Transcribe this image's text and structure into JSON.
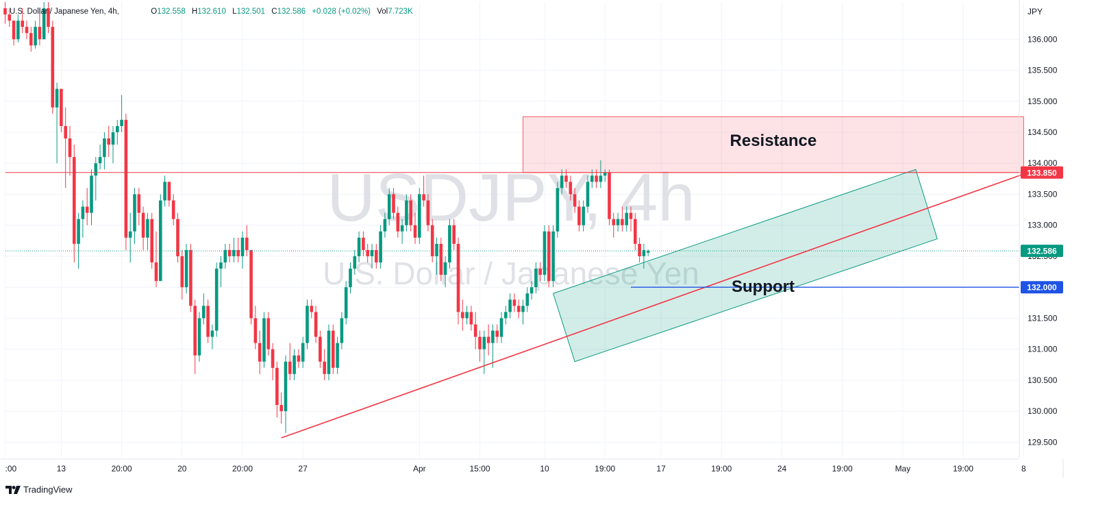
{
  "legend": {
    "symbol": "U.S. Dollar / Japanese Yen, 4h,",
    "o_label": "O",
    "o_value": "132.558",
    "h_label": "H",
    "h_value": "132.610",
    "l_label": "L",
    "l_value": "132.501",
    "c_label": "C",
    "c_value": "132.586",
    "change": "+0.028 (+0.02%)",
    "vol_label": "Vol",
    "vol_value": "7.723K"
  },
  "watermark": {
    "line1": "USDJPY, 4h",
    "line2": "U.S. Dollar / Japanese Yen"
  },
  "brand": "TradingView",
  "chart_data": {
    "type": "candlestick",
    "currency_label": "JPY",
    "ylim": [
      129.25,
      136.6
    ],
    "y_ticks": [
      "136.000",
      "135.500",
      "135.000",
      "134.500",
      "134.000",
      "133.500",
      "133.000",
      "132.500",
      "132.000",
      "131.500",
      "131.000",
      "130.500",
      "130.000",
      "129.500"
    ],
    "x_ticks": [
      {
        "label": ":00",
        "i": 0
      },
      {
        "label": "13",
        "i": 13
      },
      {
        "label": "20:00",
        "i": 27
      },
      {
        "label": "20",
        "i": 41
      },
      {
        "label": "20:00",
        "i": 55
      },
      {
        "label": "27",
        "i": 69
      },
      {
        "label": "Apr",
        "i": 96
      },
      {
        "label": "15:00",
        "i": 110
      },
      {
        "label": "10",
        "i": 125
      },
      {
        "label": "19:00",
        "i": 139
      },
      {
        "label": "17",
        "i": 152
      },
      {
        "label": "19:00",
        "i": 166
      },
      {
        "label": "24",
        "i": 180
      },
      {
        "label": "19:00",
        "i": 194
      },
      {
        "label": "May",
        "i": 208
      },
      {
        "label": "19:00",
        "i": 222
      },
      {
        "label": "8",
        "i": 236
      }
    ],
    "price_labels": [
      {
        "text": "133.850",
        "value": 133.85,
        "color": "#f23645"
      },
      {
        "text": "132.586",
        "value": 132.586,
        "color": "#089981"
      },
      {
        "text": "132.000",
        "value": 132.0,
        "color": "#1e53e5"
      }
    ],
    "annotations": [
      {
        "type": "rect",
        "label": "Resistance",
        "i1": 120,
        "i2": 236,
        "y1": 133.85,
        "y2": 134.75,
        "color": "#f23645"
      },
      {
        "type": "channel",
        "label": "",
        "points": [
          [
            127,
            131.9
          ],
          [
            211,
            133.9
          ],
          [
            216,
            132.78
          ],
          [
            132,
            130.8
          ]
        ],
        "color": "#089981"
      },
      {
        "type": "trendline",
        "label": "",
        "i1": 64,
        "y1": 129.57,
        "i2": 237,
        "y2": 133.85,
        "color": "#f23645"
      },
      {
        "type": "hline",
        "label": "",
        "value": 133.85,
        "color": "#f23645"
      },
      {
        "type": "hray",
        "label": "Support",
        "i1": 145,
        "value": 132.0,
        "color": "#1e53e5"
      }
    ],
    "ohlc": [
      [
        136.5,
        136.6,
        136.25,
        136.4
      ],
      [
        136.4,
        136.5,
        136.2,
        136.3
      ],
      [
        136.3,
        136.3,
        135.9,
        136.0
      ],
      [
        136.0,
        136.4,
        135.95,
        136.3
      ],
      [
        136.3,
        136.5,
        136.1,
        136.2
      ],
      [
        136.2,
        136.3,
        136.0,
        136.1
      ],
      [
        136.1,
        136.2,
        135.8,
        135.9
      ],
      [
        135.9,
        136.3,
        135.85,
        136.2
      ],
      [
        136.2,
        136.5,
        135.9,
        136.0
      ],
      [
        136.0,
        136.6,
        136.0,
        136.5
      ],
      [
        136.5,
        136.6,
        136.1,
        136.2
      ],
      [
        136.2,
        136.3,
        134.8,
        134.9
      ],
      [
        134.9,
        135.3,
        134.0,
        135.2
      ],
      [
        135.2,
        135.2,
        134.5,
        134.6
      ],
      [
        134.6,
        134.9,
        133.6,
        134.4
      ],
      [
        134.4,
        134.6,
        133.8,
        134.1
      ],
      [
        134.1,
        134.3,
        132.4,
        132.7
      ],
      [
        132.7,
        133.2,
        132.3,
        133.1
      ],
      [
        133.1,
        133.4,
        132.8,
        133.3
      ],
      [
        133.3,
        133.6,
        133.0,
        133.2
      ],
      [
        133.2,
        133.9,
        133.0,
        133.8
      ],
      [
        133.8,
        134.1,
        133.4,
        134.0
      ],
      [
        134.0,
        134.3,
        133.9,
        134.1
      ],
      [
        134.1,
        134.5,
        133.9,
        134.4
      ],
      [
        134.4,
        134.6,
        134.1,
        134.3
      ],
      [
        134.3,
        134.6,
        134.0,
        134.5
      ],
      [
        134.5,
        134.7,
        134.3,
        134.6
      ],
      [
        134.6,
        135.1,
        134.5,
        134.7
      ],
      [
        134.7,
        134.8,
        132.6,
        132.8
      ],
      [
        132.8,
        133.2,
        132.4,
        132.9
      ],
      [
        132.9,
        133.6,
        132.7,
        133.5
      ],
      [
        133.5,
        133.6,
        133.0,
        133.2
      ],
      [
        133.2,
        133.3,
        132.6,
        132.8
      ],
      [
        132.8,
        133.2,
        132.6,
        133.1
      ],
      [
        133.1,
        133.2,
        132.3,
        132.4
      ],
      [
        132.4,
        132.9,
        132.0,
        132.1
      ],
      [
        132.1,
        133.5,
        132.1,
        133.4
      ],
      [
        133.4,
        133.8,
        133.3,
        133.7
      ],
      [
        133.7,
        133.7,
        133.3,
        133.4
      ],
      [
        133.4,
        133.5,
        133.0,
        133.1
      ],
      [
        133.1,
        133.2,
        132.4,
        132.5
      ],
      [
        132.5,
        132.6,
        131.8,
        132.0
      ],
      [
        132.0,
        132.7,
        131.9,
        132.6
      ],
      [
        132.6,
        132.7,
        131.6,
        131.7
      ],
      [
        131.7,
        131.8,
        130.6,
        130.9
      ],
      [
        130.9,
        131.6,
        130.8,
        131.5
      ],
      [
        131.5,
        131.9,
        131.4,
        131.7
      ],
      [
        131.7,
        131.8,
        131.1,
        131.2
      ],
      [
        131.2,
        131.4,
        131.0,
        131.3
      ],
      [
        131.3,
        132.4,
        131.2,
        132.3
      ],
      [
        132.3,
        132.5,
        132.0,
        132.4
      ],
      [
        132.4,
        132.7,
        132.3,
        132.6
      ],
      [
        132.6,
        132.7,
        132.4,
        132.5
      ],
      [
        132.5,
        132.8,
        132.4,
        132.6
      ],
      [
        132.6,
        132.8,
        132.4,
        132.5
      ],
      [
        132.5,
        132.9,
        132.3,
        132.8
      ],
      [
        132.8,
        133.0,
        132.5,
        132.6
      ],
      [
        132.6,
        132.6,
        131.4,
        131.5
      ],
      [
        131.5,
        131.7,
        131.0,
        131.1
      ],
      [
        131.1,
        131.3,
        130.6,
        130.8
      ],
      [
        130.8,
        131.6,
        130.7,
        131.5
      ],
      [
        131.5,
        131.6,
        130.9,
        131.0
      ],
      [
        131.0,
        131.1,
        130.5,
        130.7
      ],
      [
        130.7,
        130.8,
        129.9,
        130.1
      ],
      [
        130.1,
        130.3,
        129.8,
        130.0
      ],
      [
        130.0,
        130.9,
        129.65,
        130.8
      ],
      [
        130.8,
        131.1,
        130.5,
        130.6
      ],
      [
        130.6,
        131.0,
        130.5,
        130.9
      ],
      [
        130.9,
        131.0,
        130.7,
        130.8
      ],
      [
        130.8,
        131.2,
        130.7,
        131.1
      ],
      [
        131.1,
        131.8,
        131.0,
        131.7
      ],
      [
        131.7,
        131.8,
        131.5,
        131.6
      ],
      [
        131.6,
        131.7,
        131.1,
        131.2
      ],
      [
        131.2,
        131.3,
        130.7,
        130.8
      ],
      [
        130.8,
        131.0,
        130.5,
        130.6
      ],
      [
        130.6,
        131.4,
        130.5,
        131.3
      ],
      [
        131.3,
        131.4,
        130.6,
        130.7
      ],
      [
        130.7,
        131.2,
        130.6,
        131.1
      ],
      [
        131.1,
        131.6,
        131.0,
        131.5
      ],
      [
        131.5,
        132.1,
        131.4,
        132.0
      ],
      [
        132.0,
        132.4,
        131.9,
        132.3
      ],
      [
        132.3,
        132.6,
        132.2,
        132.5
      ],
      [
        132.5,
        132.9,
        132.4,
        132.8
      ],
      [
        132.8,
        132.9,
        132.5,
        132.6
      ],
      [
        132.6,
        132.7,
        132.4,
        132.5
      ],
      [
        132.5,
        132.7,
        132.3,
        132.6
      ],
      [
        132.6,
        132.7,
        132.3,
        132.4
      ],
      [
        132.4,
        133.0,
        132.3,
        132.9
      ],
      [
        132.9,
        133.2,
        132.8,
        133.1
      ],
      [
        133.1,
        133.6,
        133.0,
        133.5
      ],
      [
        133.5,
        133.6,
        133.1,
        133.2
      ],
      [
        133.2,
        133.3,
        132.8,
        132.9
      ],
      [
        132.9,
        133.1,
        132.7,
        133.0
      ],
      [
        133.0,
        133.5,
        132.9,
        133.4
      ],
      [
        133.4,
        133.5,
        132.9,
        133.0
      ],
      [
        133.0,
        133.2,
        132.7,
        132.8
      ],
      [
        132.8,
        133.6,
        132.7,
        133.5
      ],
      [
        133.5,
        133.8,
        133.3,
        133.4
      ],
      [
        133.4,
        133.5,
        132.9,
        133.0
      ],
      [
        133.0,
        133.1,
        132.4,
        132.5
      ],
      [
        132.5,
        132.8,
        132.2,
        132.7
      ],
      [
        132.7,
        132.8,
        132.1,
        132.2
      ],
      [
        132.2,
        132.5,
        132.0,
        132.4
      ],
      [
        132.4,
        133.1,
        132.3,
        133.0
      ],
      [
        133.0,
        133.1,
        132.6,
        132.7
      ],
      [
        132.7,
        132.8,
        131.4,
        131.6
      ],
      [
        131.6,
        131.8,
        131.3,
        131.5
      ],
      [
        131.5,
        131.7,
        131.4,
        131.6
      ],
      [
        131.6,
        131.7,
        131.3,
        131.4
      ],
      [
        131.4,
        131.6,
        131.0,
        131.2
      ],
      [
        131.2,
        131.3,
        130.8,
        131.0
      ],
      [
        131.0,
        131.3,
        130.6,
        131.2
      ],
      [
        131.2,
        131.4,
        130.9,
        131.1
      ],
      [
        131.1,
        131.4,
        130.7,
        131.3
      ],
      [
        131.3,
        131.4,
        131.1,
        131.2
      ],
      [
        131.2,
        131.6,
        131.1,
        131.5
      ],
      [
        131.5,
        131.7,
        131.4,
        131.6
      ],
      [
        131.6,
        131.9,
        131.5,
        131.8
      ],
      [
        131.8,
        131.9,
        131.6,
        131.7
      ],
      [
        131.7,
        131.8,
        131.5,
        131.6
      ],
      [
        131.6,
        131.8,
        131.4,
        131.7
      ],
      [
        131.7,
        132.0,
        131.6,
        131.9
      ],
      [
        131.9,
        132.1,
        131.8,
        132.0
      ],
      [
        132.0,
        132.4,
        131.9,
        132.3
      ],
      [
        132.3,
        132.4,
        132.1,
        132.2
      ],
      [
        132.2,
        133.0,
        132.1,
        132.9
      ],
      [
        132.9,
        133.0,
        132.0,
        132.1
      ],
      [
        132.1,
        133.0,
        132.0,
        132.9
      ],
      [
        132.9,
        133.7,
        132.8,
        133.6
      ],
      [
        133.6,
        133.9,
        133.5,
        133.8
      ],
      [
        133.8,
        133.9,
        133.6,
        133.7
      ],
      [
        133.7,
        133.8,
        133.4,
        133.5
      ],
      [
        133.5,
        133.6,
        133.2,
        133.3
      ],
      [
        133.3,
        133.4,
        132.9,
        133.0
      ],
      [
        133.0,
        133.4,
        132.9,
        133.3
      ],
      [
        133.3,
        133.8,
        133.2,
        133.7
      ],
      [
        133.7,
        133.9,
        133.6,
        133.8
      ],
      [
        133.8,
        133.9,
        133.6,
        133.7
      ],
      [
        133.7,
        134.05,
        133.6,
        133.8
      ],
      [
        133.8,
        133.9,
        133.7,
        133.85
      ],
      [
        133.85,
        133.9,
        133.0,
        133.1
      ],
      [
        133.1,
        133.2,
        132.8,
        133.0
      ],
      [
        133.0,
        133.2,
        132.9,
        133.1
      ],
      [
        133.1,
        133.3,
        132.9,
        133.0
      ],
      [
        133.0,
        133.3,
        132.9,
        133.2
      ],
      [
        133.2,
        133.3,
        132.9,
        133.1
      ],
      [
        133.1,
        133.2,
        132.6,
        132.7
      ],
      [
        132.7,
        132.8,
        132.4,
        132.5
      ],
      [
        132.5,
        132.7,
        132.3,
        132.6
      ],
      [
        132.558,
        132.61,
        132.501,
        132.586
      ]
    ]
  }
}
